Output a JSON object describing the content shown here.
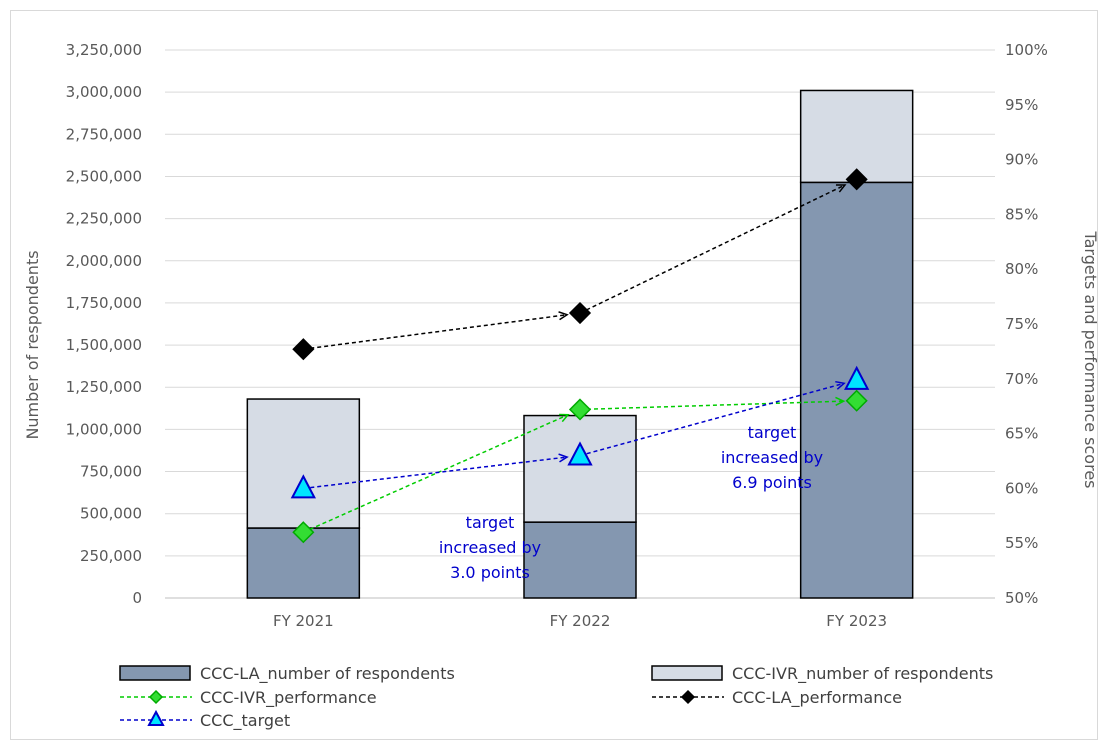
{
  "chart_data": {
    "type": "bar",
    "categories": [
      "FY 2021",
      "FY 2022",
      "FY 2023"
    ],
    "y_left": {
      "label": "Number of respondents",
      "range": [
        0,
        3250000
      ],
      "ticks": [
        "0",
        "250,000",
        "500,000",
        "750,000",
        "1,000,000",
        "1,250,000",
        "1,500,000",
        "1,750,000",
        "2,000,000",
        "2,250,000",
        "2,500,000",
        "2,750,000",
        "3,000,000",
        "3,250,000"
      ]
    },
    "y_right": {
      "label": "Targets and performance scores",
      "range": [
        50,
        100
      ],
      "ticks": [
        "50%",
        "55%",
        "60%",
        "65%",
        "70%",
        "75%",
        "80%",
        "85%",
        "90%",
        "95%",
        "100%"
      ]
    },
    "bar_series": [
      {
        "name": "CCC-LA_number of respondents",
        "values": [
          415000,
          450000,
          2465000
        ],
        "color": "#8497b0"
      },
      {
        "name": "CCC-IVR_number of respondents",
        "values": [
          765000,
          632000,
          545000
        ],
        "color": "#d6dce5"
      }
    ],
    "line_series": [
      {
        "name": "CCC-IVR_performance",
        "values": [
          56,
          67.2,
          68
        ],
        "color": "#00cc00",
        "marker": "diamond",
        "marker_color": "#33dd33"
      },
      {
        "name": "CCC-LA_performance",
        "values": [
          72.7,
          76,
          88.2
        ],
        "color": "#000000",
        "marker": "diamond",
        "marker_color": "#000000"
      },
      {
        "name": "CCC_target",
        "values": [
          60,
          63,
          69.9
        ],
        "color": "#0000cc",
        "marker": "triangle",
        "marker_color": "#00e5ff"
      }
    ],
    "annotations": [
      {
        "lines": [
          "target",
          "increased by",
          "3.0 points"
        ]
      },
      {
        "lines": [
          "target",
          "increased by",
          "6.9 points"
        ]
      }
    ],
    "legend_position": "bottom",
    "grid": true
  }
}
